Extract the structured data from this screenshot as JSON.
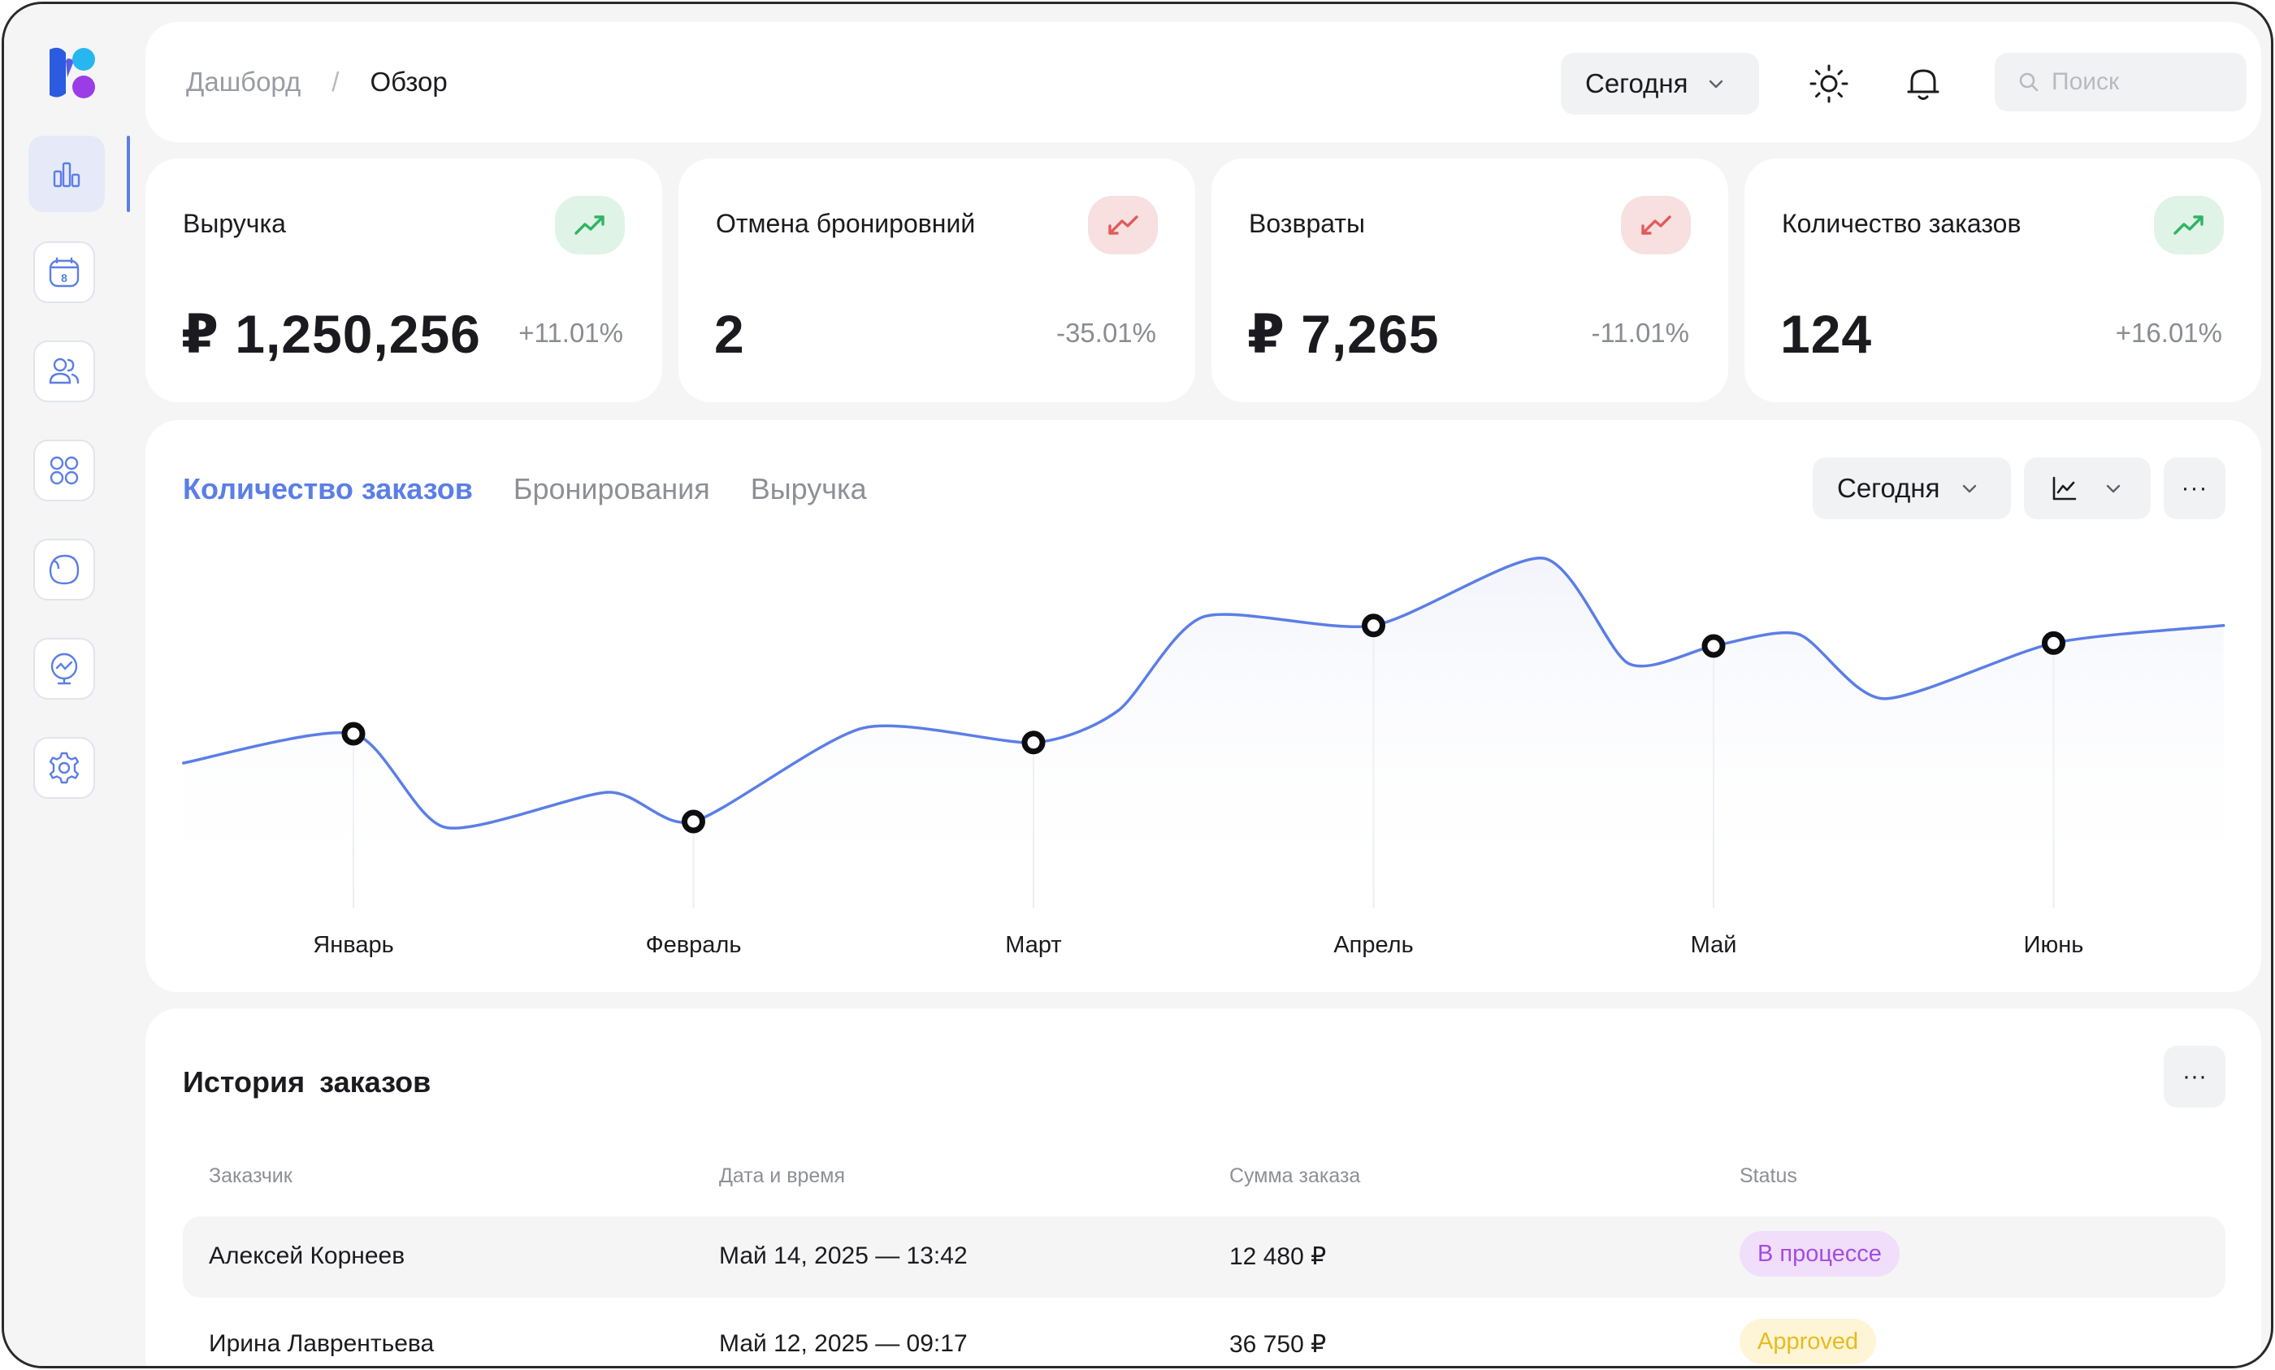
{
  "breadcrumb": {
    "root": "Дашборд",
    "separator": "/",
    "current": "Обзор"
  },
  "header": {
    "date_filter": "Сегодня",
    "search_placeholder": "Поиск"
  },
  "sidebar": {
    "items": [
      {
        "name": "analytics",
        "icon": "bar-chart-icon",
        "active": true
      },
      {
        "name": "calendar",
        "icon": "calendar-icon",
        "badge": "8",
        "active": false
      },
      {
        "name": "users",
        "icon": "users-icon",
        "active": false
      },
      {
        "name": "apps",
        "icon": "grid-icon",
        "active": false
      },
      {
        "name": "notes",
        "icon": "blob-icon",
        "active": false
      },
      {
        "name": "monitor",
        "icon": "presentation-icon",
        "active": false
      },
      {
        "name": "settings",
        "icon": "gear-icon",
        "active": false
      }
    ]
  },
  "kpis": [
    {
      "title": "Выручка",
      "value": "₽ 1,250,256",
      "delta": "+11.01%",
      "trend": "up"
    },
    {
      "title": "Отмена бронировний",
      "value": "2",
      "delta": "-35.01%",
      "trend": "down"
    },
    {
      "title": "Возвраты",
      "value": "₽ 7,265",
      "delta": "-11.01%",
      "trend": "down"
    },
    {
      "title": "Количество заказов",
      "value": "124",
      "delta": "+16.01%",
      "trend": "up"
    }
  ],
  "chart": {
    "tabs": [
      "Количество заказов",
      "Бронирования",
      "Выручка"
    ],
    "active_tab": 0,
    "range": "Сегодня",
    "more": "···"
  },
  "chart_data": {
    "type": "line",
    "categories": [
      "Январь",
      "Февраль",
      "Март",
      "Апрель",
      "Май",
      "Июнь"
    ],
    "points": [
      {
        "x": -0.5,
        "y": 0.3
      },
      {
        "x": 0,
        "y": 0.4
      },
      {
        "x": 0.27,
        "y": 0.08
      },
      {
        "x": 0.75,
        "y": 0.2
      },
      {
        "x": 1,
        "y": 0.1
      },
      {
        "x": 1.5,
        "y": 0.42
      },
      {
        "x": 2,
        "y": 0.37
      },
      {
        "x": 2.25,
        "y": 0.48
      },
      {
        "x": 2.5,
        "y": 0.8
      },
      {
        "x": 3,
        "y": 0.77
      },
      {
        "x": 3.5,
        "y": 1.0
      },
      {
        "x": 3.75,
        "y": 0.64
      },
      {
        "x": 4,
        "y": 0.7
      },
      {
        "x": 4.25,
        "y": 0.74
      },
      {
        "x": 4.5,
        "y": 0.52
      },
      {
        "x": 5,
        "y": 0.71
      },
      {
        "x": 5.5,
        "y": 0.77
      }
    ],
    "markers": [
      {
        "x": 0,
        "y": 0.4
      },
      {
        "x": 1,
        "y": 0.1
      },
      {
        "x": 2,
        "y": 0.37
      },
      {
        "x": 3,
        "y": 0.77
      },
      {
        "x": 4,
        "y": 0.7
      },
      {
        "x": 5,
        "y": 0.71
      }
    ],
    "line_color": "#5b7ee6",
    "grid": false
  },
  "history": {
    "title": "История  заказов",
    "more": "···",
    "columns": [
      "Заказчик",
      "Дата и время",
      "Сумма заказа",
      "Status"
    ],
    "rows": [
      {
        "customer": "Алексей Корнеев",
        "datetime": "Май 14, 2025 — 13:42",
        "amount": "12 480 ₽",
        "status": "В процессе",
        "status_color": "#a24ee0",
        "status_bg": "#f1defa"
      },
      {
        "customer": "Ирина Лаврентьева",
        "datetime": "Май 12, 2025 — 09:17",
        "amount": "36 750 ₽",
        "status": "Approved",
        "status_color": "#e8bb1e",
        "status_bg": "#fdf5d6"
      }
    ]
  },
  "colors": {
    "accent": "#5b7ee6",
    "up": "#2fb463",
    "down": "#e05c5c"
  }
}
